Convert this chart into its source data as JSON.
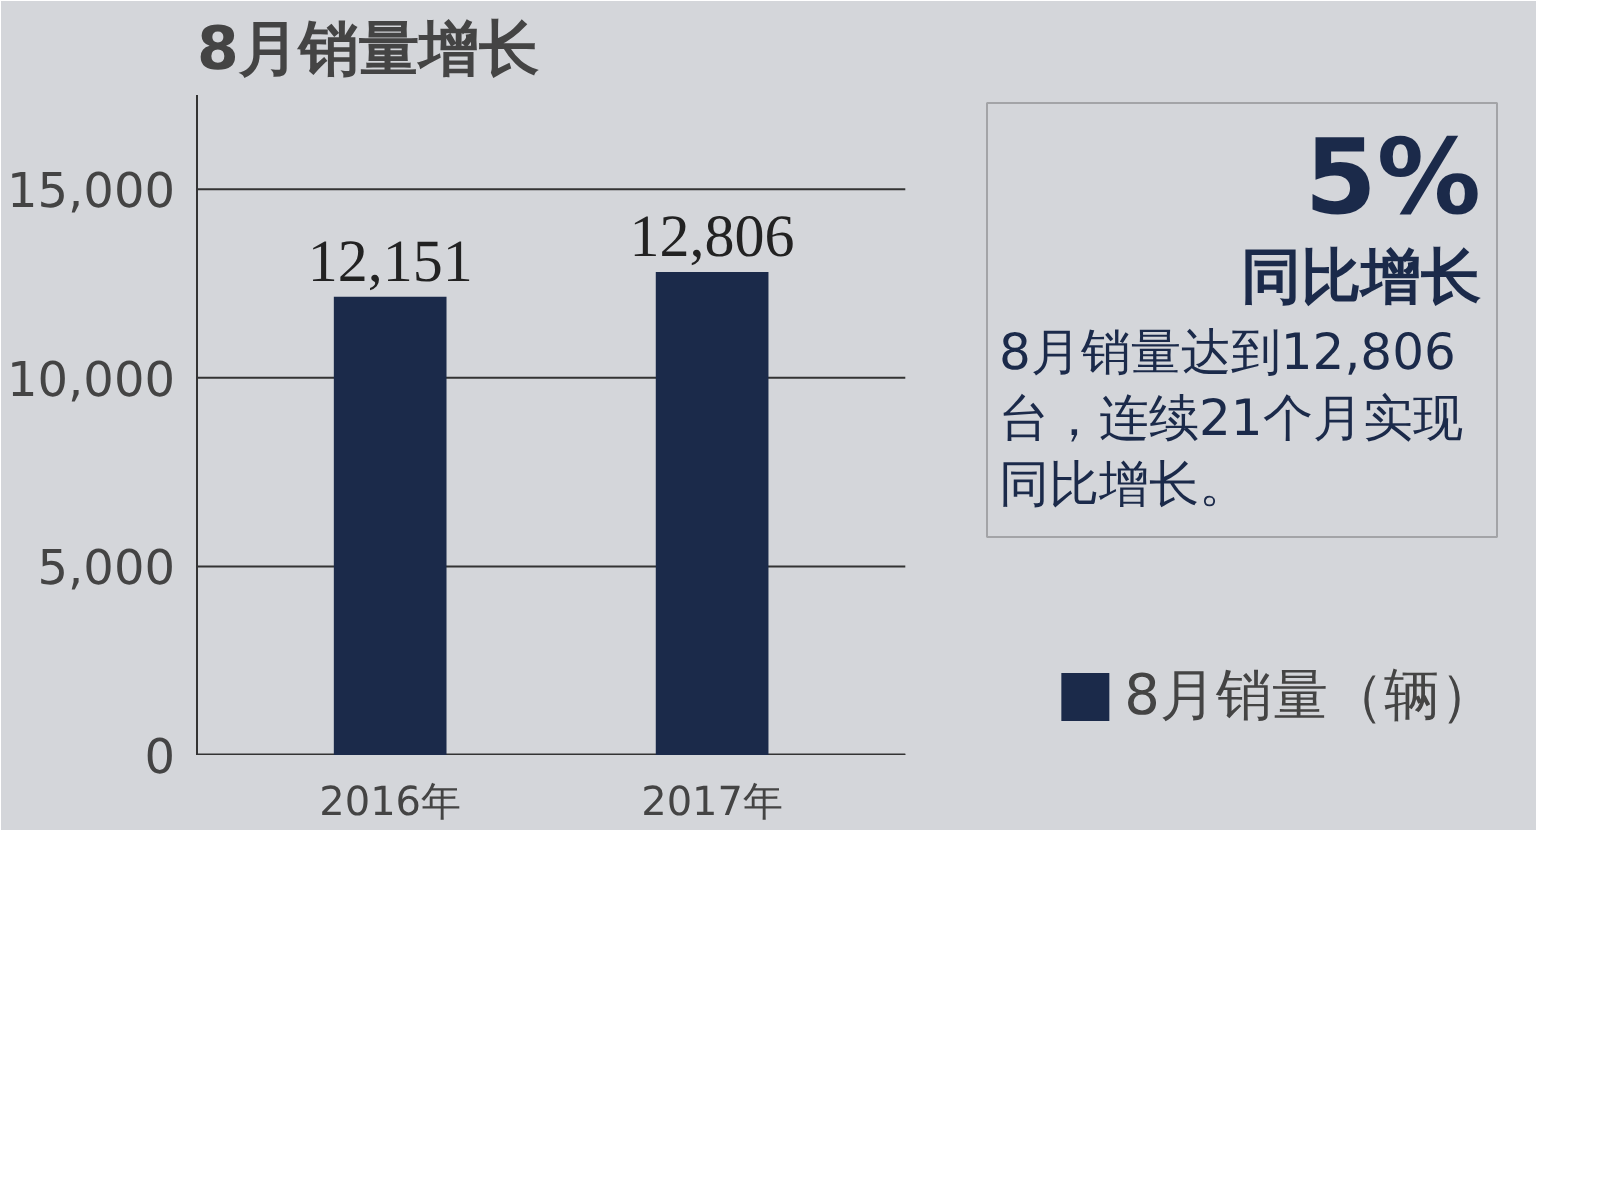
{
  "chart_data": {
    "type": "bar",
    "title": "8月销量增长",
    "categories": [
      "2016年",
      "2017年"
    ],
    "series": [
      {
        "name": "8月销量（辆）",
        "color": "#1b2a4a",
        "values": [
          12151,
          12806
        ]
      }
    ],
    "value_labels": [
      "12,151",
      "12,806"
    ],
    "ylim": [
      0,
      17500
    ],
    "yticks": [
      0,
      {
        "value": 5000,
        "label": "5,000"
      },
      {
        "value": 10000,
        "label": "10,000"
      },
      {
        "value": 15000,
        "label": "15,000"
      }
    ],
    "grid": "y",
    "legend": "bottom right",
    "annotations": [
      "5%",
      "同比增长",
      "8月销量达到12,806台，连续21个月实现同比增长。"
    ]
  }
}
